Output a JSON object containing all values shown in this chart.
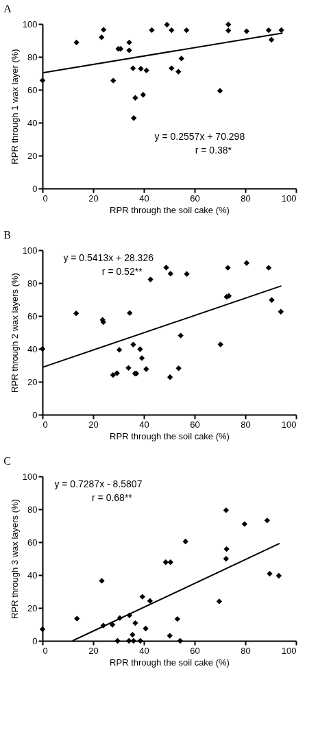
{
  "chart_data": [
    {
      "type": "scatter",
      "title": "A",
      "xlabel": "RPR through the soil cake (%)",
      "ylabel": "RPR through 1 wax layer (%)",
      "xlim": [
        0,
        100
      ],
      "ylim": [
        0,
        100
      ],
      "xticks": [
        0,
        20,
        40,
        60,
        80,
        100
      ],
      "yticks": [
        0,
        20,
        40,
        60,
        80,
        100
      ],
      "grid": false,
      "annotations": [
        "y = 0.2557x + 70.298",
        "r = 0.38*"
      ],
      "series": [
        {
          "type": "scatter",
          "marker": "diamond",
          "color": "#000000",
          "x": [
            0,
            13.4,
            23.3,
            24.1,
            27.9,
            29.9,
            30.8,
            34.2,
            34.2,
            35.7,
            36.6,
            36.0,
            38.8,
            39.7,
            41.0,
            43.1,
            49.1,
            50.9,
            50.9,
            53.6,
            54.8,
            56.8,
            70.0,
            73.3,
            73.3,
            80.5,
            89.2,
            90.3,
            94.2
          ],
          "values": [
            65.7,
            88.8,
            91.9,
            96.5,
            65.6,
            84.9,
            84.9,
            88.8,
            84.0,
            73.1,
            55.1,
            42.8,
            72.8,
            57.0,
            71.8,
            96.3,
            99.6,
            96.2,
            73.1,
            71.0,
            79.0,
            96.2,
            59.4,
            99.7,
            96.0,
            95.6,
            96.2,
            90.4,
            96.3
          ]
        },
        {
          "type": "line",
          "marker": "none",
          "line_style": "solid",
          "color": "#000000",
          "x": [
            0,
            94.7
          ],
          "values": [
            70.3,
            94.5
          ]
        }
      ]
    },
    {
      "type": "scatter",
      "title": "B",
      "xlabel": "RPR through the soil cake (%)",
      "ylabel": "RPR through 2 wax layers (%)",
      "xlim": [
        0,
        100
      ],
      "ylim": [
        0,
        100
      ],
      "xticks": [
        0,
        20,
        40,
        60,
        80,
        100
      ],
      "yticks": [
        0,
        20,
        40,
        60,
        80,
        100
      ],
      "grid": false,
      "annotations": [
        "y = 0.5413x + 28.326",
        "r = 0.52**"
      ],
      "series": [
        {
          "type": "scatter",
          "marker": "diamond",
          "color": "#000000",
          "x": [
            0,
            13.3,
            23.7,
            24.0,
            34.4,
            30.3,
            27.8,
            29.4,
            33.9,
            35.8,
            36.5,
            37.0,
            38.5,
            39.2,
            40.9,
            42.6,
            48.8,
            50.3,
            50.5,
            53.7,
            54.5,
            56.9,
            70.2,
            72.6,
            73.5,
            73.1,
            80.5,
            89.2,
            90.4,
            94.0
          ],
          "values": [
            40.0,
            61.6,
            57.6,
            56.2,
            61.8,
            39.4,
            24.1,
            25.2,
            28.4,
            42.6,
            25.0,
            25.0,
            39.8,
            34.4,
            27.7,
            82.2,
            89.4,
            22.8,
            85.7,
            28.2,
            48.1,
            85.5,
            42.7,
            71.6,
            72.2,
            89.3,
            92.2,
            89.3,
            69.7,
            62.6
          ]
        },
        {
          "type": "line",
          "marker": "none",
          "line_style": "solid",
          "color": "#000000",
          "x": [
            0,
            94.2
          ],
          "values": [
            28.8,
            78.3
          ]
        }
      ]
    },
    {
      "type": "scatter",
      "title": "C",
      "xlabel": "RPR through the soil cake (%)",
      "ylabel": "RPR through 3 wax layers (%)",
      "xlim": [
        0,
        100
      ],
      "ylim": [
        0,
        100
      ],
      "xticks": [
        0,
        20,
        40,
        60,
        80,
        100
      ],
      "yticks": [
        0,
        20,
        40,
        60,
        80,
        100
      ],
      "grid": false,
      "annotations": [
        "y = 0.7287x - 8.5807",
        "r = 0.68**"
      ],
      "series": [
        {
          "type": "scatter",
          "marker": "diamond",
          "color": "#000000",
          "x": [
            0,
            13.6,
            23.4,
            24.0,
            27.6,
            29.6,
            30.5,
            34.1,
            34.3,
            35.5,
            35.9,
            36.6,
            38.6,
            39.4,
            40.7,
            42.4,
            48.6,
            50.5,
            50.2,
            53.2,
            54.3,
            56.4,
            69.7,
            72.4,
            72.6,
            72.4,
            79.7,
            88.6,
            89.6,
            93.2
          ],
          "values": [
            7.1,
            13.5,
            36.5,
            9.3,
            9.8,
            0,
            13.9,
            0,
            15.5,
            3.7,
            0,
            10.8,
            0,
            26.8,
            7.5,
            24.3,
            47.8,
            47.8,
            3.1,
            13.3,
            0,
            60.4,
            24.0,
            79.4,
            55.8,
            49.9,
            71.0,
            73.2,
            40.8,
            39.6
          ]
        },
        {
          "type": "line",
          "marker": "none",
          "line_style": "solid",
          "color": "#000000",
          "x": [
            11.8,
            93.5
          ],
          "values": [
            0,
            59.2
          ]
        }
      ]
    }
  ]
}
